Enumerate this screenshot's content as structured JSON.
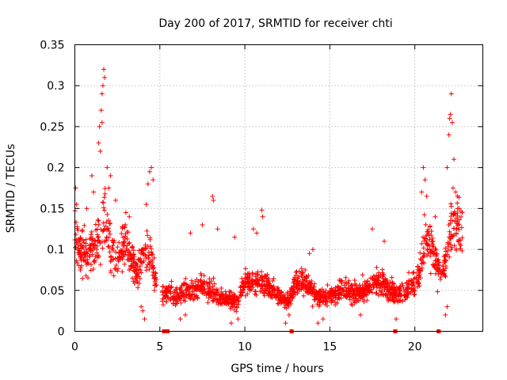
{
  "chart_data": {
    "type": "scatter",
    "title": "Day 200 of 2017, SRMTID for receiver chti",
    "xlabel": "GPS time / hours",
    "ylabel": "SRMTID / TECUs",
    "xlim": [
      0,
      24
    ],
    "ylim": [
      0,
      0.35
    ],
    "xticks": [
      0,
      5,
      10,
      15,
      20
    ],
    "xtick_labels": [
      "0",
      "5",
      "10",
      "15",
      "20"
    ],
    "yticks": [
      0,
      0.05,
      0.1,
      0.15,
      0.2,
      0.25,
      0.3,
      0.35
    ],
    "ytick_labels": [
      "0",
      "0.05",
      "0.1",
      "0.15",
      "0.2",
      "0.25",
      "0.3",
      "0.35"
    ],
    "grid": true,
    "marker": "plus",
    "color": "#ff0000",
    "series": [
      {
        "name": "SRMTID",
        "envelope": [
          [
            0.0,
            0.12
          ],
          [
            0.25,
            0.1
          ],
          [
            0.5,
            0.1
          ],
          [
            0.75,
            0.09
          ],
          [
            1.0,
            0.1
          ],
          [
            1.25,
            0.11
          ],
          [
            1.5,
            0.12
          ],
          [
            1.75,
            0.14
          ],
          [
            2.0,
            0.11
          ],
          [
            2.25,
            0.1
          ],
          [
            2.5,
            0.09
          ],
          [
            2.75,
            0.1
          ],
          [
            3.0,
            0.11
          ],
          [
            3.25,
            0.09
          ],
          [
            3.5,
            0.08
          ],
          [
            3.75,
            0.075
          ],
          [
            4.0,
            0.09
          ],
          [
            4.25,
            0.1
          ],
          [
            4.5,
            0.09
          ],
          [
            4.75,
            0.06
          ],
          [
            5.25,
            0.045
          ],
          [
            5.5,
            0.05
          ],
          [
            5.75,
            0.045
          ],
          [
            6.0,
            0.04
          ],
          [
            6.5,
            0.05
          ],
          [
            7.0,
            0.05
          ],
          [
            7.5,
            0.055
          ],
          [
            8.0,
            0.05
          ],
          [
            8.5,
            0.04
          ],
          [
            9.0,
            0.04
          ],
          [
            9.5,
            0.035
          ],
          [
            10.0,
            0.06
          ],
          [
            10.5,
            0.06
          ],
          [
            11.0,
            0.06
          ],
          [
            11.5,
            0.05
          ],
          [
            12.0,
            0.045
          ],
          [
            12.5,
            0.035
          ],
          [
            13.0,
            0.06
          ],
          [
            13.5,
            0.06
          ],
          [
            14.0,
            0.05
          ],
          [
            14.5,
            0.04
          ],
          [
            15.0,
            0.045
          ],
          [
            15.5,
            0.05
          ],
          [
            16.0,
            0.05
          ],
          [
            16.5,
            0.045
          ],
          [
            17.0,
            0.05
          ],
          [
            17.5,
            0.06
          ],
          [
            18.0,
            0.06
          ],
          [
            18.5,
            0.05
          ],
          [
            19.0,
            0.045
          ],
          [
            19.5,
            0.05
          ],
          [
            20.0,
            0.06
          ],
          [
            20.25,
            0.07
          ],
          [
            20.5,
            0.1
          ],
          [
            20.75,
            0.11
          ],
          [
            21.0,
            0.1
          ],
          [
            21.5,
            0.07
          ],
          [
            21.75,
            0.08
          ],
          [
            22.0,
            0.11
          ],
          [
            22.25,
            0.14
          ],
          [
            22.5,
            0.13
          ],
          [
            22.75,
            0.12
          ]
        ],
        "peaks": [
          [
            0.05,
            0.175
          ],
          [
            0.1,
            0.155
          ],
          [
            0.7,
            0.15
          ],
          [
            1.0,
            0.19
          ],
          [
            1.1,
            0.17
          ],
          [
            1.4,
            0.23
          ],
          [
            1.5,
            0.22
          ],
          [
            1.55,
            0.27
          ],
          [
            1.6,
            0.29
          ],
          [
            1.65,
            0.3
          ],
          [
            1.7,
            0.32
          ],
          [
            1.75,
            0.31
          ],
          [
            1.6,
            0.255
          ],
          [
            1.45,
            0.25
          ],
          [
            1.9,
            0.2
          ],
          [
            2.1,
            0.19
          ],
          [
            2.0,
            0.175
          ],
          [
            2.4,
            0.16
          ],
          [
            3.0,
            0.145
          ],
          [
            3.2,
            0.14
          ],
          [
            4.3,
            0.18
          ],
          [
            4.4,
            0.195
          ],
          [
            4.5,
            0.2
          ],
          [
            4.6,
            0.185
          ],
          [
            4.2,
            0.155
          ],
          [
            6.8,
            0.12
          ],
          [
            8.1,
            0.165
          ],
          [
            8.15,
            0.16
          ],
          [
            7.5,
            0.13
          ],
          [
            8.4,
            0.125
          ],
          [
            9.4,
            0.115
          ],
          [
            10.5,
            0.125
          ],
          [
            10.7,
            0.12
          ],
          [
            11.0,
            0.148
          ],
          [
            11.05,
            0.14
          ],
          [
            13.8,
            0.095
          ],
          [
            14.0,
            0.1
          ],
          [
            17.5,
            0.125
          ],
          [
            18.2,
            0.11
          ],
          [
            20.5,
            0.2
          ],
          [
            20.6,
            0.185
          ],
          [
            20.7,
            0.165
          ],
          [
            20.4,
            0.17
          ],
          [
            21.2,
            0.14
          ],
          [
            21.9,
            0.2
          ],
          [
            22.0,
            0.24
          ],
          [
            22.05,
            0.26
          ],
          [
            22.1,
            0.265
          ],
          [
            22.15,
            0.29
          ],
          [
            22.2,
            0.255
          ],
          [
            22.3,
            0.21
          ],
          [
            22.4,
            0.17
          ],
          [
            22.5,
            0.165
          ],
          [
            22.6,
            0.15
          ],
          [
            22.25,
            0.175
          ]
        ],
        "lows": [
          [
            3.9,
            0.03
          ],
          [
            4.0,
            0.025
          ],
          [
            4.1,
            0.015
          ],
          [
            6.2,
            0.015
          ],
          [
            6.5,
            0.02
          ],
          [
            9.2,
            0.01
          ],
          [
            9.6,
            0.015
          ],
          [
            12.4,
            0.01
          ],
          [
            12.6,
            0.02
          ],
          [
            14.3,
            0.01
          ],
          [
            14.6,
            0.015
          ],
          [
            16.8,
            0.02
          ],
          [
            18.9,
            0.015
          ],
          [
            21.8,
            0.02
          ],
          [
            21.9,
            0.03
          ]
        ],
        "zero_markers": [
          5.25,
          5.45,
          12.75,
          18.85,
          21.4
        ]
      }
    ]
  }
}
